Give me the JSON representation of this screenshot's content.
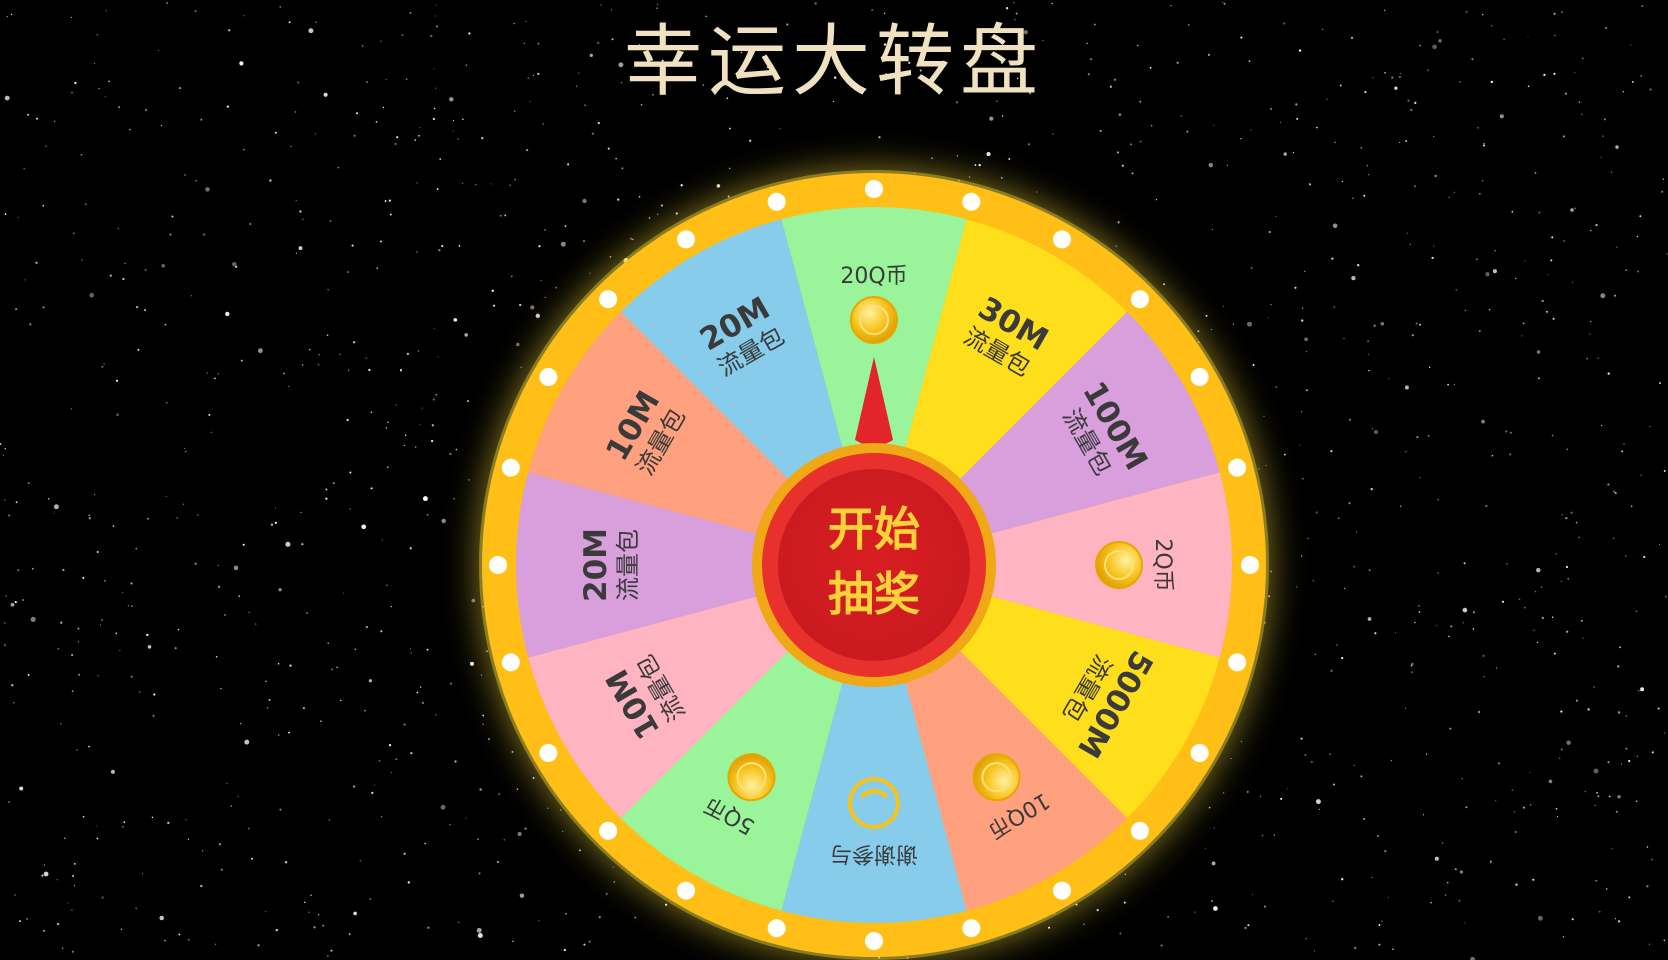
{
  "title": "幸运大转盘",
  "start_button": {
    "line1": "开始",
    "line2": "抽奖"
  },
  "colors": {
    "background": "#000000",
    "title": "#f0e2c0",
    "rim": "#ffbf17",
    "rim_glow": "#ffe94a",
    "rim_dots": "#ffffff",
    "pointer": "#e3242b",
    "button_red": "#d8232a",
    "button_text": "#ffd23a",
    "coin": "#f7c21c"
  },
  "wheel": {
    "segment_count": 12,
    "rim_dot_count": 24,
    "segments": [
      {
        "name": "seg-20q",
        "amount": "20Q币",
        "label": "",
        "kind": "coin",
        "color": "#9af59a"
      },
      {
        "name": "seg-30m",
        "amount": "30M",
        "label": "流量包",
        "kind": "data",
        "color": "#ffde1c"
      },
      {
        "name": "seg-100m",
        "amount": "100M",
        "label": "流量包",
        "kind": "data",
        "color": "#d89fdc"
      },
      {
        "name": "seg-2q",
        "amount": "2Q币",
        "label": "",
        "kind": "coin",
        "color": "#ffb4c2"
      },
      {
        "name": "seg-5000m",
        "amount": "5000M",
        "label": "流量包",
        "kind": "data",
        "color": "#ffde1c"
      },
      {
        "name": "seg-10q",
        "amount": "10Q币",
        "label": "",
        "kind": "coin",
        "color": "#ffa07e"
      },
      {
        "name": "seg-thanks",
        "amount": "谢谢参与",
        "label": "",
        "kind": "thanks",
        "color": "#87cdeb"
      },
      {
        "name": "seg-5q",
        "amount": "5Q币",
        "label": "",
        "kind": "coin",
        "color": "#9af59a"
      },
      {
        "name": "seg-10m-b",
        "amount": "10M",
        "label": "流量包",
        "kind": "data",
        "color": "#ffb4c2"
      },
      {
        "name": "seg-20m-b",
        "amount": "20M",
        "label": "流量包",
        "kind": "data",
        "color": "#d89fdc"
      },
      {
        "name": "seg-10m-a",
        "amount": "10M",
        "label": "流量包",
        "kind": "data",
        "color": "#ffa07e"
      },
      {
        "name": "seg-20m-a",
        "amount": "20M",
        "label": "流量包",
        "kind": "data",
        "color": "#87cdeb"
      }
    ]
  }
}
